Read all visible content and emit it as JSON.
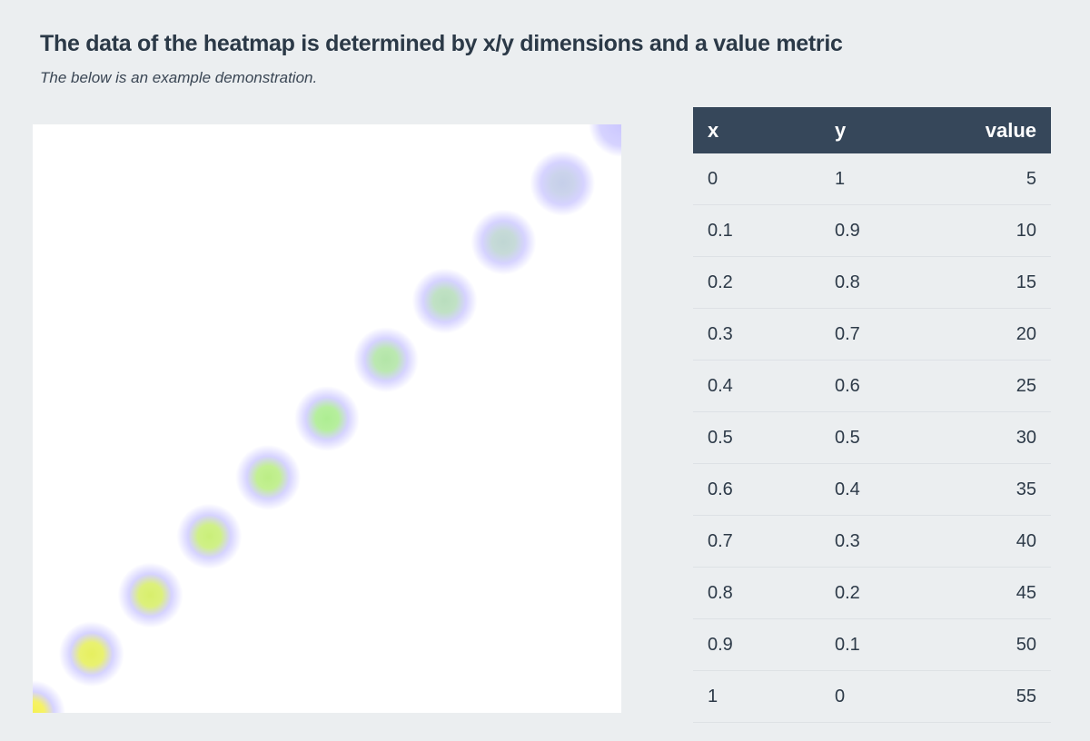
{
  "title": "The data of the heatmap is determined by x/y dimensions and a value metric",
  "subtitle": "The below is an example demonstration.",
  "table": {
    "headers": [
      "x",
      "y",
      "value"
    ]
  },
  "chart_data": {
    "type": "heatmap",
    "title": "",
    "xlim": [
      0,
      1
    ],
    "ylim": [
      0,
      1
    ],
    "value_range": [
      5,
      55
    ],
    "color_scale": [
      "#c8c4ff",
      "#a9ec8c",
      "#f4f04a"
    ],
    "grid": false,
    "points": [
      {
        "x": "0",
        "y": "1",
        "value": 5
      },
      {
        "x": "0.1",
        "y": "0.9",
        "value": 10
      },
      {
        "x": "0.2",
        "y": "0.8",
        "value": 15
      },
      {
        "x": "0.3",
        "y": "0.7",
        "value": 20
      },
      {
        "x": "0.4",
        "y": "0.6",
        "value": 25
      },
      {
        "x": "0.5",
        "y": "0.5",
        "value": 30
      },
      {
        "x": "0.6",
        "y": "0.4",
        "value": 35
      },
      {
        "x": "0.7",
        "y": "0.3",
        "value": 40
      },
      {
        "x": "0.8",
        "y": "0.2",
        "value": 45
      },
      {
        "x": "0.9",
        "y": "0.1",
        "value": 50
      },
      {
        "x": "1",
        "y": "0",
        "value": 55
      }
    ]
  }
}
